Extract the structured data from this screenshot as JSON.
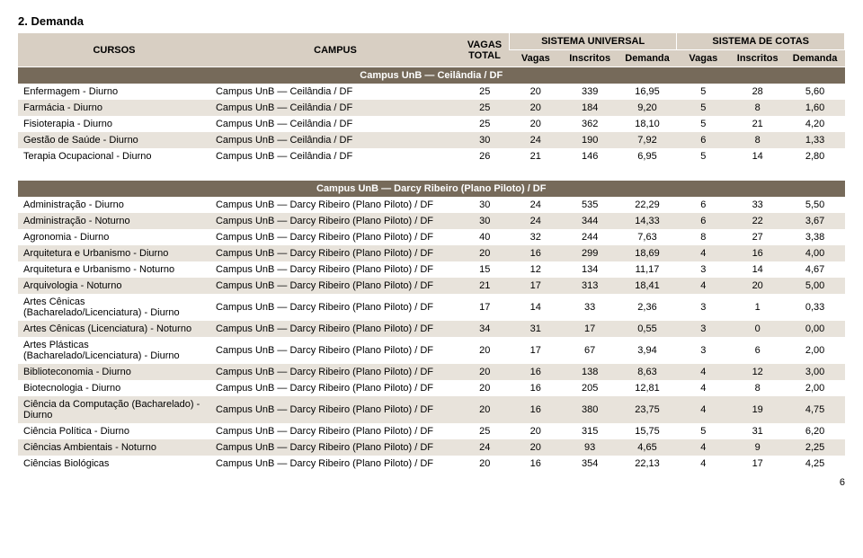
{
  "page": {
    "section_title": "2. Demanda",
    "page_number": "6"
  },
  "headers": {
    "cursos": "CURSOS",
    "campus": "CAMPUS",
    "vagas_total": "VAGAS TOTAL",
    "sist_univ": "SISTEMA UNIVERSAL",
    "sist_cotas": "SISTEMA DE COTAS",
    "vagas": "Vagas",
    "inscritos": "Inscritos",
    "demanda": "Demanda"
  },
  "sections": [
    {
      "title": "Campus UnB — Ceilândia / DF",
      "rows": [
        {
          "curso": "Enfermagem - Diurno",
          "campus": "Campus UnB — Ceilândia / DF",
          "total": "25",
          "uv": "20",
          "ui": "339",
          "ud": "16,95",
          "cv": "5",
          "ci": "28",
          "cd": "5,60"
        },
        {
          "curso": "Farmácia - Diurno",
          "campus": "Campus UnB — Ceilândia / DF",
          "total": "25",
          "uv": "20",
          "ui": "184",
          "ud": "9,20",
          "cv": "5",
          "ci": "8",
          "cd": "1,60"
        },
        {
          "curso": "Fisioterapia - Diurno",
          "campus": "Campus UnB — Ceilândia / DF",
          "total": "25",
          "uv": "20",
          "ui": "362",
          "ud": "18,10",
          "cv": "5",
          "ci": "21",
          "cd": "4,20"
        },
        {
          "curso": "Gestão de Saúde - Diurno",
          "campus": "Campus UnB — Ceilândia / DF",
          "total": "30",
          "uv": "24",
          "ui": "190",
          "ud": "7,92",
          "cv": "6",
          "ci": "8",
          "cd": "1,33"
        },
        {
          "curso": "Terapia Ocupacional - Diurno",
          "campus": "Campus UnB — Ceilândia / DF",
          "total": "26",
          "uv": "21",
          "ui": "146",
          "ud": "6,95",
          "cv": "5",
          "ci": "14",
          "cd": "2,80"
        }
      ]
    },
    {
      "title": "Campus UnB — Darcy Ribeiro (Plano Piloto) / DF",
      "rows": [
        {
          "curso": "Administração - Diurno",
          "campus": "Campus UnB — Darcy Ribeiro (Plano Piloto) / DF",
          "total": "30",
          "uv": "24",
          "ui": "535",
          "ud": "22,29",
          "cv": "6",
          "ci": "33",
          "cd": "5,50"
        },
        {
          "curso": "Administração - Noturno",
          "campus": "Campus UnB — Darcy Ribeiro (Plano Piloto) / DF",
          "total": "30",
          "uv": "24",
          "ui": "344",
          "ud": "14,33",
          "cv": "6",
          "ci": "22",
          "cd": "3,67"
        },
        {
          "curso": "Agronomia - Diurno",
          "campus": "Campus UnB — Darcy Ribeiro (Plano Piloto) / DF",
          "total": "40",
          "uv": "32",
          "ui": "244",
          "ud": "7,63",
          "cv": "8",
          "ci": "27",
          "cd": "3,38"
        },
        {
          "curso": "Arquitetura e Urbanismo  - Diurno",
          "campus": "Campus UnB — Darcy Ribeiro (Plano Piloto) / DF",
          "total": "20",
          "uv": "16",
          "ui": "299",
          "ud": "18,69",
          "cv": "4",
          "ci": "16",
          "cd": "4,00"
        },
        {
          "curso": "Arquitetura e Urbanismo - Noturno",
          "campus": "Campus UnB — Darcy Ribeiro (Plano Piloto) / DF",
          "total": "15",
          "uv": "12",
          "ui": "134",
          "ud": "11,17",
          "cv": "3",
          "ci": "14",
          "cd": "4,67"
        },
        {
          "curso": "Arquivologia - Noturno",
          "campus": "Campus UnB — Darcy Ribeiro (Plano Piloto) / DF",
          "total": "21",
          "uv": "17",
          "ui": "313",
          "ud": "18,41",
          "cv": "4",
          "ci": "20",
          "cd": "5,00"
        },
        {
          "curso": "Artes Cênicas (Bacharelado/Licenciatura) - Diurno",
          "campus": "Campus UnB — Darcy Ribeiro (Plano Piloto) / DF",
          "total": "17",
          "uv": "14",
          "ui": "33",
          "ud": "2,36",
          "cv": "3",
          "ci": "1",
          "cd": "0,33"
        },
        {
          "curso": "Artes Cênicas (Licenciatura) - Noturno",
          "campus": "Campus UnB — Darcy Ribeiro (Plano Piloto) / DF",
          "total": "34",
          "uv": "31",
          "ui": "17",
          "ud": "0,55",
          "cv": "3",
          "ci": "0",
          "cd": "0,00"
        },
        {
          "curso": "Artes Plásticas (Bacharelado/Licenciatura) - Diurno",
          "campus": "Campus UnB — Darcy Ribeiro (Plano Piloto) / DF",
          "total": "20",
          "uv": "17",
          "ui": "67",
          "ud": "3,94",
          "cv": "3",
          "ci": "6",
          "cd": "2,00"
        },
        {
          "curso": "Biblioteconomia - Diurno",
          "campus": "Campus UnB — Darcy Ribeiro (Plano Piloto) / DF",
          "total": "20",
          "uv": "16",
          "ui": "138",
          "ud": "8,63",
          "cv": "4",
          "ci": "12",
          "cd": "3,00"
        },
        {
          "curso": "Biotecnologia - Diurno",
          "campus": "Campus UnB — Darcy Ribeiro (Plano Piloto) / DF",
          "total": "20",
          "uv": "16",
          "ui": "205",
          "ud": "12,81",
          "cv": "4",
          "ci": "8",
          "cd": "2,00"
        },
        {
          "curso": "Ciência da Computação (Bacharelado) - Diurno",
          "campus": "Campus UnB — Darcy Ribeiro (Plano Piloto) / DF",
          "total": "20",
          "uv": "16",
          "ui": "380",
          "ud": "23,75",
          "cv": "4",
          "ci": "19",
          "cd": "4,75"
        },
        {
          "curso": "Ciência Política - Diurno",
          "campus": "Campus UnB — Darcy Ribeiro (Plano Piloto) / DF",
          "total": "25",
          "uv": "20",
          "ui": "315",
          "ud": "15,75",
          "cv": "5",
          "ci": "31",
          "cd": "6,20"
        },
        {
          "curso": "Ciências Ambientais - Noturno",
          "campus": "Campus UnB — Darcy Ribeiro (Plano Piloto) / DF",
          "total": "24",
          "uv": "20",
          "ui": "93",
          "ud": "4,65",
          "cv": "4",
          "ci": "9",
          "cd": "2,25"
        },
        {
          "curso": "Ciências Biológicas",
          "campus": "Campus UnB — Darcy Ribeiro (Plano Piloto) / DF",
          "total": "20",
          "uv": "16",
          "ui": "354",
          "ud": "22,13",
          "cv": "4",
          "ci": "17",
          "cd": "4,25"
        }
      ]
    }
  ]
}
